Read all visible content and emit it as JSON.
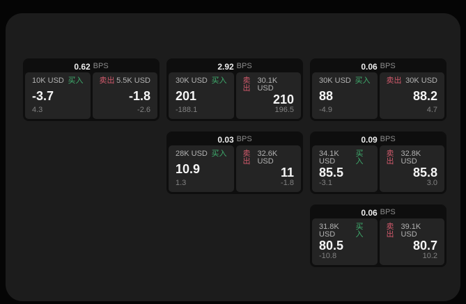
{
  "labels": {
    "bps_suffix": "BPS",
    "buy": "买入",
    "sell": "卖出"
  },
  "colors": {
    "buy_green": "#3fae6e",
    "sell_red": "#d25a6c",
    "window_bg": "#1c1c1c",
    "card_bg": "#0e0e0e",
    "panel_bg": "#242424"
  },
  "cards": [
    {
      "bps_value": "0.62",
      "buy": {
        "amount": "10K USD",
        "value": "-3.7",
        "delta": "4.3"
      },
      "sell": {
        "amount": "5.5K USD",
        "value": "-1.8",
        "delta": "-2.6"
      }
    },
    {
      "bps_value": "2.92",
      "buy": {
        "amount": "30K USD",
        "value": "201",
        "delta": "-188.1"
      },
      "sell": {
        "amount": "30.1K USD",
        "value": "210",
        "delta": "196.5"
      }
    },
    {
      "bps_value": "0.06",
      "buy": {
        "amount": "30K USD",
        "value": "88",
        "delta": "-4.9"
      },
      "sell": {
        "amount": "30K USD",
        "value": "88.2",
        "delta": "4.7"
      }
    },
    {
      "bps_value": "0.03",
      "buy": {
        "amount": "28K USD",
        "value": "10.9",
        "delta": "1.3"
      },
      "sell": {
        "amount": "32.6K USD",
        "value": "11",
        "delta": "-1.8"
      }
    },
    {
      "bps_value": "0.09",
      "buy": {
        "amount": "34.1K USD",
        "value": "85.5",
        "delta": "-3.1"
      },
      "sell": {
        "amount": "32.8K USD",
        "value": "85.8",
        "delta": "3.0"
      }
    },
    {
      "bps_value": "0.06",
      "buy": {
        "amount": "31.8K USD",
        "value": "80.5",
        "delta": "-10.8"
      },
      "sell": {
        "amount": "39.1K USD",
        "value": "80.7",
        "delta": "10.2"
      }
    }
  ]
}
